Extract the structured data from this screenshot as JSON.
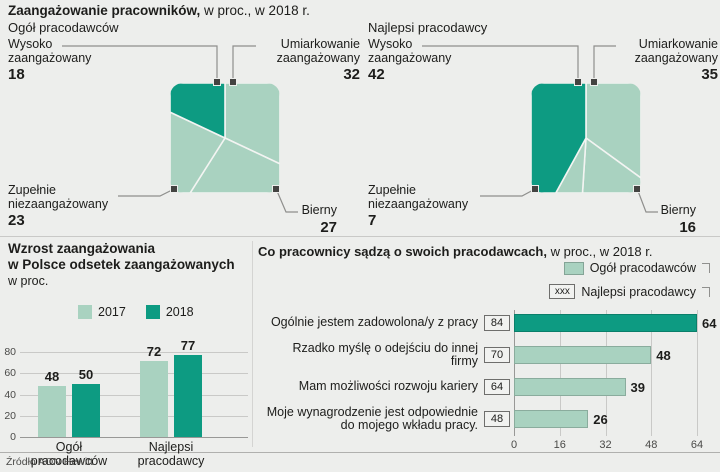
{
  "page": {
    "title_bold": "Zaangażowanie pracowników,",
    "title_rest": " w proc., w 2018 r.",
    "source": "Źródło AON Hewitt"
  },
  "colors": {
    "background": "#edeeec",
    "light_green": "#a9d2c0",
    "dark_teal": "#0d9b82",
    "text": "#1d1d1b",
    "grid": "#c9c9c7",
    "axis": "#989896",
    "connector": "#8f8f8d"
  },
  "chart_data": [
    {
      "id": "pie-ogol-pracodawcow",
      "type": "pie",
      "variant": "square-pie",
      "title": "Ogół pracodawców",
      "slices": [
        {
          "label": "Umiarkowanie zaangażowany",
          "label_lines": [
            "Umiarkowanie",
            "zaangażowany"
          ],
          "value": 32,
          "color": "light_green"
        },
        {
          "label": "Bierny",
          "label_lines": [
            "Bierny"
          ],
          "value": 27,
          "color": "light_green"
        },
        {
          "label": "Zupełnie niezaangażowany",
          "label_lines": [
            "Zupełnie",
            "niezaangażowany"
          ],
          "value": 23,
          "color": "light_green"
        },
        {
          "label": "Wysoko zaangażowany",
          "label_lines": [
            "Wysoko",
            "zaangażowany"
          ],
          "value": 18,
          "color": "dark_teal"
        }
      ]
    },
    {
      "id": "pie-najlepsi-pracodawcy",
      "type": "pie",
      "variant": "square-pie",
      "title": "Najlepsi pracodawcy",
      "slices": [
        {
          "label": "Umiarkowanie zaangażowany",
          "label_lines": [
            "Umiarkowanie",
            "zaangażowany"
          ],
          "value": 35,
          "color": "light_green"
        },
        {
          "label": "Bierny",
          "label_lines": [
            "Bierny"
          ],
          "value": 16,
          "color": "light_green"
        },
        {
          "label": "Zupełnie niezaangażowany",
          "label_lines": [
            "Zupełnie",
            "niezaangażowany"
          ],
          "value": 7,
          "color": "light_green"
        },
        {
          "label": "Wysoko zaangażowany",
          "label_lines": [
            "Wysoko",
            "zaangażowany"
          ],
          "value": 42,
          "color": "dark_teal"
        }
      ]
    },
    {
      "id": "bar-wzrost-zaangazowania",
      "type": "bar",
      "title_lines": [
        "Wzrost zaangażowania",
        "w Polsce odsetek zaangażowanych"
      ],
      "subtitle": "w proc.",
      "categories": [
        [
          "Ogół",
          "pracodawców"
        ],
        [
          "Najlepsi",
          "pracodawcy"
        ]
      ],
      "series": [
        {
          "name": "2017",
          "color": "light_green",
          "values": [
            48,
            72
          ]
        },
        {
          "name": "2018",
          "color": "dark_teal",
          "values": [
            50,
            77
          ]
        }
      ],
      "ylim": [
        0,
        80
      ],
      "yticks": [
        80,
        60,
        40,
        20,
        0
      ]
    },
    {
      "id": "hbar-co-pracownicy-sadza",
      "type": "bar",
      "orientation": "horizontal",
      "title_bold": "Co pracownicy sądzą o swoich pracodawcach,",
      "title_rest": " w proc., w 2018 r.",
      "legend": [
        {
          "label": "Ogół pracodawców",
          "swatch": "light_green"
        },
        {
          "label": "Najlepsi pracodawcy",
          "swatch_text": "xxx"
        }
      ],
      "rows": [
        {
          "statement": "Ogólnie jestem zadowolona/y z pracy",
          "statement_lines": [
            "Ogólnie jestem zadowolona/y z pracy"
          ],
          "najlepsi_pracodawcy": 84,
          "ogol_pracodawcow": 64,
          "bar_color": "dark_teal"
        },
        {
          "statement": "Rzadko myślę o odejściu do innej firmy",
          "statement_lines": [
            "Rzadko myślę o odejściu do innej",
            "firmy"
          ],
          "najlepsi_pracodawcy": 70,
          "ogol_pracodawcow": 48,
          "bar_color": "light_green"
        },
        {
          "statement": "Mam możliwości rozwoju kariery",
          "statement_lines": [
            "Mam możliwości rozwoju kariery"
          ],
          "najlepsi_pracodawcy": 64,
          "ogol_pracodawcow": 39,
          "bar_color": "light_green"
        },
        {
          "statement": "Moje wynagrodzenie jest odpowiednie do mojego wkładu pracy.",
          "statement_lines": [
            "Moje wynagrodzenie jest odpowiednie",
            "do mojego wkładu pracy."
          ],
          "najlepsi_pracodawcy": 48,
          "ogol_pracodawcow": 26,
          "bar_color": "light_green"
        }
      ],
      "xlim": [
        0,
        64
      ],
      "xticks": [
        0,
        16,
        32,
        48,
        64
      ]
    }
  ]
}
